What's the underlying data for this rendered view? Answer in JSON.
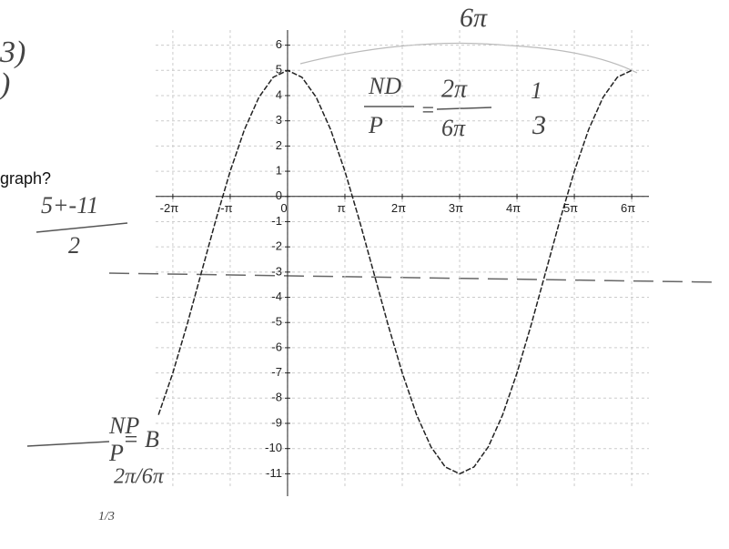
{
  "chart_data": {
    "type": "line",
    "x": [
      -2.25,
      -2,
      -1.75,
      -1.5,
      -1.25,
      -1,
      -0.75,
      -0.5,
      -0.25,
      0,
      0.25,
      0.5,
      0.75,
      1,
      1.25,
      1.5,
      1.75,
      2,
      2.25,
      2.5,
      2.75,
      3,
      3.25,
      3.5,
      3.75,
      4,
      4.25,
      4.5,
      4.75,
      5,
      5.25,
      5.5,
      5.75,
      6
    ],
    "series": [
      {
        "color": "#222222",
        "values": [
          -8.66,
          -7,
          -5.07,
          -3,
          -0.93,
          1,
          2.66,
          3.93,
          4.73,
          5,
          4.73,
          3.93,
          2.66,
          1,
          -0.93,
          -3,
          -5.07,
          -7,
          -8.66,
          -9.93,
          -10.73,
          -11,
          -10.73,
          -9.93,
          -8.66,
          -7,
          -5.07,
          -3,
          -0.93,
          1,
          2.66,
          3.93,
          4.73,
          5
        ]
      }
    ],
    "xlim": [
      -2.3,
      6.3
    ],
    "ylim": [
      -11.6,
      6.6
    ],
    "xticks": [
      {
        "value": -2,
        "label": "-2π"
      },
      {
        "value": -1,
        "label": "-π"
      },
      0,
      {
        "value": 1,
        "label": "π"
      },
      {
        "value": 2,
        "label": "2π"
      },
      {
        "value": 3,
        "label": "3π"
      },
      {
        "value": 4,
        "label": "4π"
      },
      {
        "value": 5,
        "label": "5π"
      },
      {
        "value": 6,
        "label": "6π"
      }
    ],
    "yticks": [
      -11,
      -10,
      -9,
      -8,
      -7,
      -6,
      -5,
      -4,
      -3,
      -2,
      -1,
      0,
      1,
      2,
      3,
      4,
      5,
      6
    ],
    "grid": true,
    "question": [
      "3)",
      ")",
      "graph?"
    ],
    "annotations": [
      "6π",
      "ND",
      "P",
      "=",
      "2π",
      "6π",
      "1",
      "3",
      "5+-11",
      "2",
      "NP",
      "P",
      "= B",
      "2π/6π",
      "1/3"
    ]
  }
}
